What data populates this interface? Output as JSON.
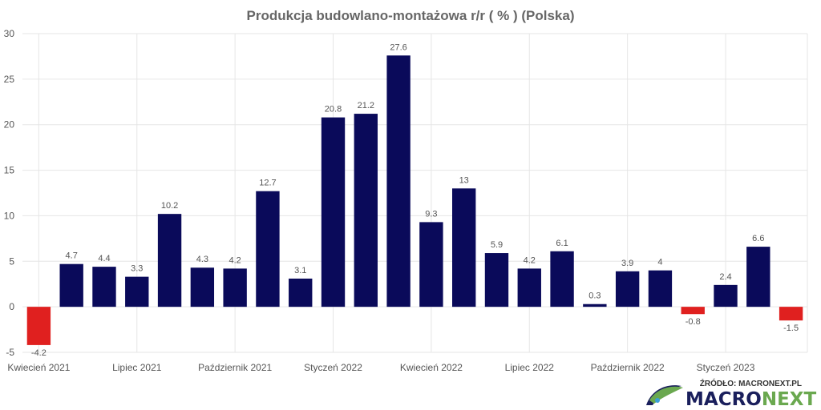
{
  "chart_data": {
    "type": "bar",
    "title": "Produkcja budowlano-montażowa r/r ( % ) (Polska)",
    "xlabel": "",
    "ylabel": "",
    "ylim": [
      -5,
      30
    ],
    "yticks": [
      -5,
      0,
      5,
      10,
      15,
      20,
      25,
      30
    ],
    "grid": true,
    "legend": "none",
    "x_tick_labels": [
      {
        "index": 0,
        "label": "Kwiecień 2021"
      },
      {
        "index": 3,
        "label": "Lipiec 2021"
      },
      {
        "index": 6,
        "label": "Październik 2021"
      },
      {
        "index": 9,
        "label": "Styczeń 2022"
      },
      {
        "index": 12,
        "label": "Kwiecień 2022"
      },
      {
        "index": 15,
        "label": "Lipiec 2022"
      },
      {
        "index": 18,
        "label": "Październik 2022"
      },
      {
        "index": 21,
        "label": "Styczeń 2023"
      }
    ],
    "values": [
      -4.2,
      4.7,
      4.4,
      3.3,
      10.2,
      4.3,
      4.2,
      12.7,
      3.1,
      20.8,
      21.2,
      27.6,
      9.3,
      13,
      5.9,
      4.2,
      6.1,
      0.3,
      3.9,
      4,
      -0.8,
      2.4,
      6.6,
      -1.5
    ],
    "data_labels": [
      "-4.2",
      "4.7",
      "4.4",
      "3.3",
      "10.2",
      "4.3",
      "4.2",
      "12.7",
      "3.1",
      "20.8",
      "21.2",
      "27.6",
      "9.3",
      "13",
      "5.9",
      "4.2",
      "6.1",
      "0.3",
      "3.9",
      "4",
      "-0.8",
      "2.4",
      "6.6",
      "-1.5"
    ],
    "colors": {
      "positive": "#0a0a5a",
      "negative": "#e0201f",
      "grid": "#e6e6e6"
    }
  },
  "source": {
    "label": "ŹRÓDŁO: MACRONEXT.PL"
  },
  "logo": {
    "part1": "MACRO",
    "part2": "NEXT"
  }
}
